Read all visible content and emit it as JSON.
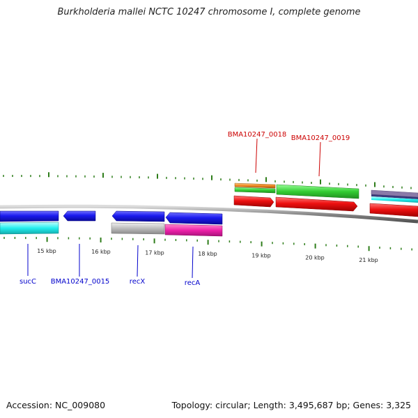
{
  "header": {
    "title": "Burkholderia mallei NCTC 10247 chromosome I, complete genome"
  },
  "footer": {
    "accession": "Accession: NC_009080",
    "summary": "Topology: circular; Length: 3,495,687 bp; Genes: 3,325"
  },
  "axis": {
    "tick_labels": [
      "15 kbp",
      "16 kbp",
      "17 kbp",
      "18 kbp",
      "19 kbp",
      "20 kbp",
      "21 kbp"
    ]
  },
  "gene_labels": {
    "forward": [
      "BMA10247_0018",
      "BMA10247_0019"
    ],
    "reverse": [
      "sucC",
      "BMA10247_0015",
      "recX",
      "recA"
    ]
  },
  "colors": {
    "backbone": "#888888",
    "tick": "#2e7d1a",
    "forward_cds": "#ee1111",
    "reverse_cds": "#1a1aee",
    "forward_label": "#cc0000",
    "reverse_label": "#0000cc",
    "green_feature": "#33cc33",
    "orange_feature": "#ee8822",
    "cyan_feature": "#22eeee",
    "magenta_feature": "#ee22aa",
    "grey_feature": "#bbbbbb"
  }
}
